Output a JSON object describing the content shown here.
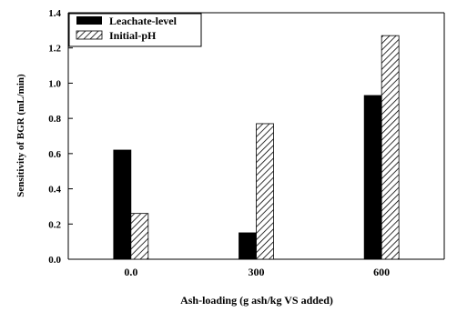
{
  "chart_data": {
    "type": "bar",
    "title": "",
    "xlabel": "Ash-loading (g ash/kg VS added)",
    "ylabel": "Sensitivity of BGR (mL/min)",
    "categories": [
      "0.0",
      "300",
      "600"
    ],
    "series": [
      {
        "name": "Leachate-level",
        "values": [
          0.62,
          0.15,
          0.93
        ],
        "color": "#000000",
        "pattern": "solid"
      },
      {
        "name": "Initial-pH",
        "values": [
          0.26,
          0.77,
          1.27
        ],
        "color": "#000000",
        "pattern": "diagonal-hatch"
      }
    ],
    "ylim": [
      0,
      1.4
    ],
    "yticks": [
      "0.0",
      "0.2",
      "0.4",
      "0.6",
      "0.8",
      "1.0",
      "1.2",
      "1.4"
    ],
    "grid": false,
    "legend_position": "top-left"
  }
}
